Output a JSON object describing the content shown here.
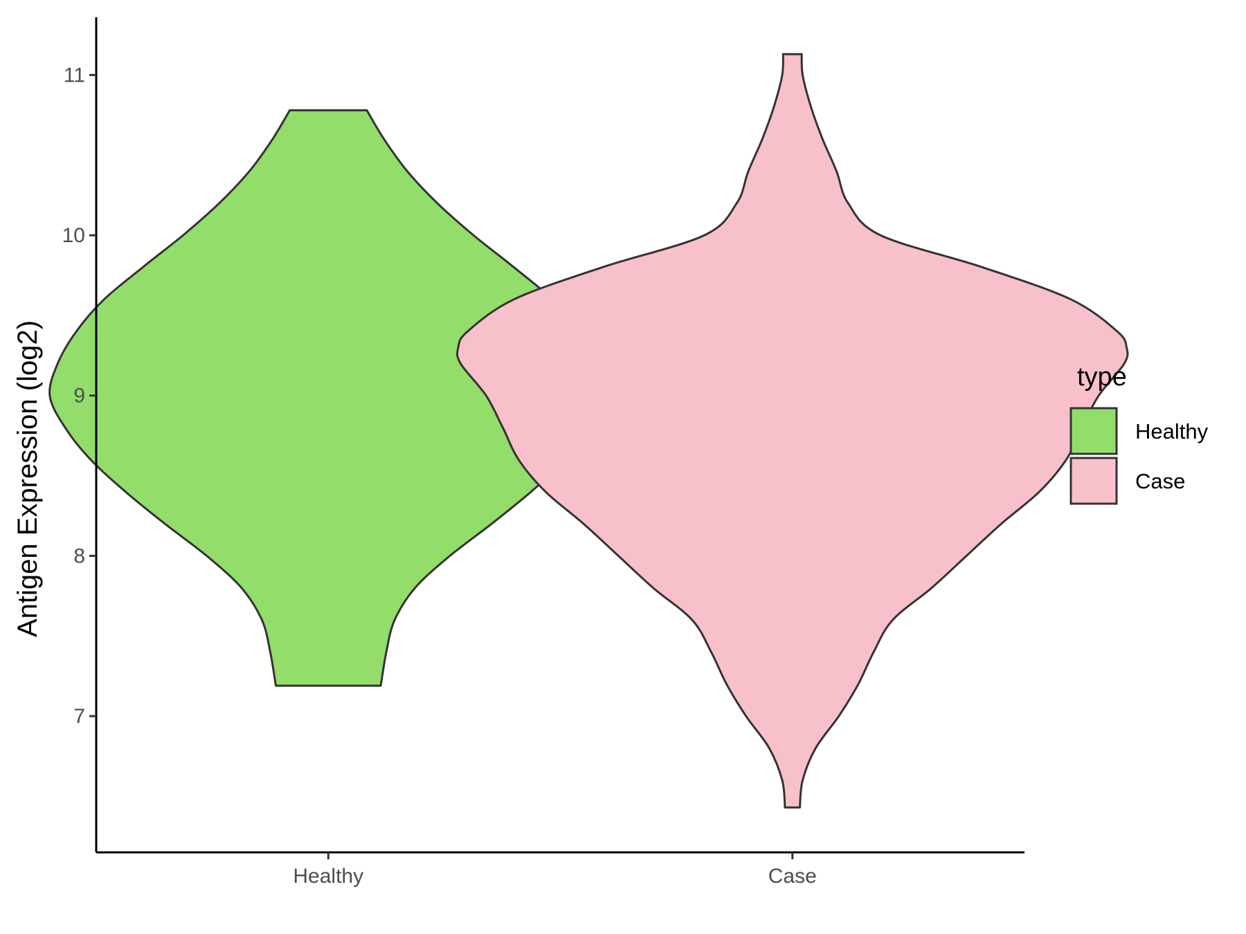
{
  "chart_data": {
    "type": "violin",
    "ylabel": "Antigen Expression (log2)",
    "ylim": [
      6.15,
      11.36
    ],
    "yticks": [
      "7",
      "8",
      "9",
      "10",
      "11"
    ],
    "categories": [
      "Healthy",
      "Case"
    ],
    "legend": {
      "title": "type",
      "position": "right",
      "entries": [
        "Healthy",
        "Case"
      ]
    },
    "series": [
      {
        "name": "Healthy",
        "color": "#93DD6B",
        "y_min": 7.19,
        "y_max": 10.78,
        "profile": [
          [
            7.19,
            0.113
          ],
          [
            7.4,
            0.125
          ],
          [
            7.6,
            0.143
          ],
          [
            7.8,
            0.187
          ],
          [
            8.0,
            0.262
          ],
          [
            8.2,
            0.352
          ],
          [
            8.4,
            0.437
          ],
          [
            8.6,
            0.512
          ],
          [
            8.8,
            0.567
          ],
          [
            9.0,
            0.6
          ],
          [
            9.2,
            0.583
          ],
          [
            9.4,
            0.543
          ],
          [
            9.6,
            0.483
          ],
          [
            9.8,
            0.4
          ],
          [
            10.0,
            0.313
          ],
          [
            10.2,
            0.235
          ],
          [
            10.4,
            0.17
          ],
          [
            10.6,
            0.12
          ],
          [
            10.78,
            0.083
          ]
        ]
      },
      {
        "name": "Case",
        "color": "#F8C0CB",
        "y_min": 6.43,
        "y_max": 11.13,
        "profile": [
          [
            6.43,
            0.016
          ],
          [
            6.6,
            0.022
          ],
          [
            6.8,
            0.05
          ],
          [
            7.0,
            0.1
          ],
          [
            7.2,
            0.142
          ],
          [
            7.4,
            0.175
          ],
          [
            7.6,
            0.216
          ],
          [
            7.8,
            0.3
          ],
          [
            8.0,
            0.375
          ],
          [
            8.2,
            0.45
          ],
          [
            8.4,
            0.532
          ],
          [
            8.6,
            0.59
          ],
          [
            8.8,
            0.624
          ],
          [
            9.0,
            0.66
          ],
          [
            9.2,
            0.715
          ],
          [
            9.3,
            0.72
          ],
          [
            9.4,
            0.7
          ],
          [
            9.6,
            0.6
          ],
          [
            9.8,
            0.41
          ],
          [
            10.0,
            0.19
          ],
          [
            10.2,
            0.12
          ],
          [
            10.4,
            0.095
          ],
          [
            10.6,
            0.065
          ],
          [
            10.8,
            0.04
          ],
          [
            11.0,
            0.022
          ],
          [
            11.13,
            0.02
          ]
        ]
      }
    ]
  }
}
